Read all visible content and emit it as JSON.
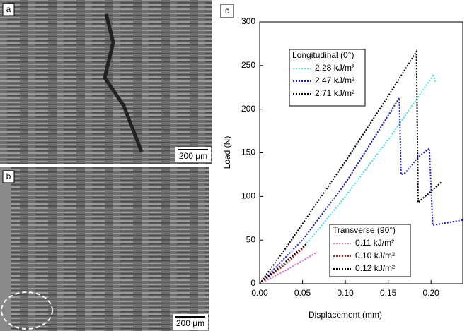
{
  "panels": [
    {
      "label": "a",
      "scale_bar": "200 μm"
    },
    {
      "label": "b",
      "scale_bar": "200 μm"
    }
  ],
  "chart_data": {
    "type": "line",
    "label": "c",
    "x_label": "Displacement (mm)",
    "y_label": "Load (N)",
    "xlim": [
      0,
      0.237
    ],
    "ylim": [
      0,
      300
    ],
    "xticks": [
      {
        "value": 0,
        "label": "0.00"
      },
      0.05,
      {
        "value": 0.1,
        "label": "0.10"
      },
      0.15,
      {
        "value": 0.2,
        "label": "0.20"
      }
    ],
    "yticks": [
      0,
      50,
      100,
      150,
      200,
      250,
      300
    ],
    "groups": [
      {
        "title": "Longitudinal (0°)",
        "series": [
          {
            "name": "2.28 kJ/m²",
            "color": "#3fe0e8",
            "x": [
              0,
              0.05,
              0.1,
              0.15,
              0.2,
              0.203,
              0.205
            ],
            "values": [
              0,
              40,
              100,
              165,
              235,
              240,
              230
            ]
          },
          {
            "name": "2.47 kJ/m²",
            "color": "#1a1ad6",
            "x": [
              0,
              0.05,
              0.1,
              0.163,
              0.165,
              0.17,
              0.185,
              0.198,
              0.202,
              0.22,
              0.237
            ],
            "values": [
              0,
              50,
              115,
              213,
              125,
              127,
              145,
              155,
              67,
              70,
              73
            ]
          },
          {
            "name": "2.71 kJ/m²",
            "color": "#000000",
            "x": [
              0,
              0.03,
              0.1,
              0.15,
              0.183,
              0.185,
              0.213
            ],
            "values": [
              0,
              40,
              140,
              215,
              266,
              93,
              117
            ]
          }
        ]
      },
      {
        "title": "Transverse (90°)",
        "series": [
          {
            "name": "0.11 kJ/m²",
            "color": "#f060e0",
            "x": [
              0,
              0.03,
              0.067
            ],
            "values": [
              0,
              15,
              36
            ]
          },
          {
            "name": "0.10 kJ/m²",
            "color": "#e01010",
            "x": [
              0,
              0.03,
              0.053
            ],
            "values": [
              0,
              22,
              43
            ]
          },
          {
            "name": "0.12 kJ/m²",
            "color": "#000000",
            "x": [
              0,
              0.03,
              0.055
            ],
            "values": [
              0,
              25,
              46
            ]
          }
        ]
      }
    ]
  }
}
